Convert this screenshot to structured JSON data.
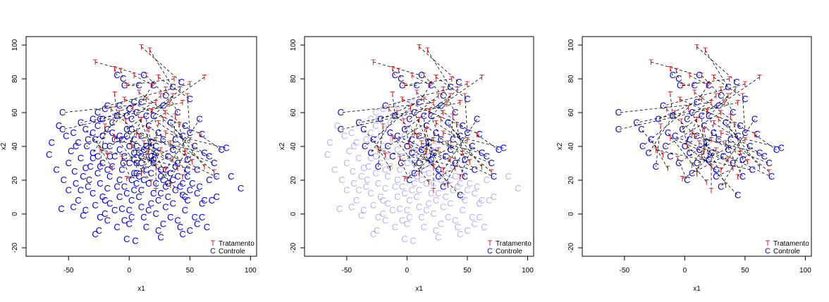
{
  "chart_data": [
    {
      "type": "scatter",
      "panel": "all-controls",
      "title": "",
      "xlabel": "x1",
      "ylabel": "x2",
      "xlim": [
        -85,
        105
      ],
      "ylim": [
        -25,
        105
      ],
      "xticks": [
        -50,
        0,
        50,
        100
      ],
      "yticks": [
        -20,
        0,
        20,
        40,
        60,
        80,
        100
      ],
      "legend": {
        "position": "bottom-right",
        "entries": [
          "Tratamento",
          "Controle"
        ]
      },
      "marker_treatment": "T",
      "marker_control": "C",
      "color_treatment": "#e41a1c",
      "color_control": "#0000ee",
      "unmatched_control_style": "full"
    },
    {
      "type": "scatter",
      "panel": "matched-highlighted",
      "title": "",
      "xlabel": "x1",
      "ylabel": "x2",
      "xlim": [
        -85,
        105
      ],
      "ylim": [
        -25,
        105
      ],
      "xticks": [
        -50,
        0,
        50,
        100
      ],
      "yticks": [
        -20,
        0,
        20,
        40,
        60,
        80,
        100
      ],
      "legend": {
        "position": "bottom-right",
        "entries": [
          "Tratamento",
          "Controle"
        ]
      },
      "marker_treatment": "T",
      "marker_control": "C",
      "color_treatment": "#e41a1c",
      "color_control": "#0000ee",
      "unmatched_control_style": "faded"
    },
    {
      "type": "scatter",
      "panel": "matched-only",
      "title": "",
      "xlabel": "x1",
      "ylabel": "x2",
      "xlim": [
        -85,
        105
      ],
      "ylim": [
        -25,
        105
      ],
      "xticks": [
        -50,
        0,
        50,
        100
      ],
      "yticks": [
        -20,
        0,
        20,
        40,
        60,
        80,
        100
      ],
      "legend": {
        "position": "bottom-right",
        "entries": [
          "Tratamento",
          "Controle"
        ]
      },
      "marker_treatment": "T",
      "marker_control": "C",
      "color_treatment": "#e41a1c",
      "color_control": "#0000ee",
      "unmatched_control_style": "hidden"
    }
  ],
  "shared_data": {
    "treated": [
      [
        10,
        99
      ],
      [
        17,
        97
      ],
      [
        -28,
        90
      ],
      [
        -12,
        86
      ],
      [
        -7,
        85
      ],
      [
        4,
        82
      ],
      [
        14,
        82
      ],
      [
        24,
        81
      ],
      [
        37,
        80
      ],
      [
        62,
        81
      ],
      [
        50,
        77
      ],
      [
        -2,
        76
      ],
      [
        19,
        76
      ],
      [
        30,
        74
      ],
      [
        42,
        74
      ],
      [
        8,
        72
      ],
      [
        -12,
        71
      ],
      [
        26,
        70
      ],
      [
        36,
        70
      ],
      [
        48,
        70
      ],
      [
        -4,
        68
      ],
      [
        14,
        68
      ],
      [
        22,
        66
      ],
      [
        33,
        65
      ],
      [
        44,
        66
      ],
      [
        3,
        63
      ],
      [
        -15,
        62
      ],
      [
        -8,
        60
      ],
      [
        18,
        61
      ],
      [
        30,
        60
      ],
      [
        38,
        58
      ],
      [
        10,
        56
      ],
      [
        -3,
        55
      ],
      [
        24,
        54
      ],
      [
        41,
        53
      ],
      [
        -20,
        52
      ],
      [
        16,
        50
      ],
      [
        6,
        48
      ],
      [
        30,
        48
      ],
      [
        58,
        47
      ],
      [
        -12,
        45
      ],
      [
        22,
        44
      ],
      [
        12,
        42
      ],
      [
        34,
        42
      ],
      [
        2,
        40
      ],
      [
        -24,
        38
      ],
      [
        26,
        38
      ],
      [
        46,
        36
      ],
      [
        14,
        34
      ],
      [
        -6,
        33
      ],
      [
        36,
        32
      ],
      [
        52,
        31
      ],
      [
        6,
        29
      ],
      [
        22,
        28
      ],
      [
        62,
        28
      ],
      [
        -14,
        27
      ],
      [
        30,
        26
      ],
      [
        70,
        25
      ],
      [
        10,
        24
      ],
      [
        44,
        22
      ],
      [
        -2,
        21
      ],
      [
        18,
        19
      ],
      [
        34,
        17
      ],
      [
        22,
        14
      ],
      [
        50,
        44
      ],
      [
        8,
        46
      ],
      [
        28,
        56
      ],
      [
        -18,
        35
      ],
      [
        40,
        27
      ],
      [
        16,
        37
      ]
    ],
    "matched_controls": [
      [
        43,
        78
      ],
      [
        36,
        75
      ],
      [
        12,
        82
      ],
      [
        -10,
        82
      ],
      [
        -5,
        80
      ],
      [
        20,
        76
      ],
      [
        30,
        70
      ],
      [
        50,
        68
      ],
      [
        -4,
        76
      ],
      [
        28,
        64
      ],
      [
        -18,
        64
      ],
      [
        8,
        76
      ],
      [
        10,
        66
      ],
      [
        40,
        60
      ],
      [
        20,
        58
      ],
      [
        46,
        52
      ],
      [
        -10,
        58
      ],
      [
        2,
        56
      ],
      [
        -2,
        50
      ],
      [
        50,
        48
      ],
      [
        60,
        47
      ],
      [
        -22,
        56
      ],
      [
        -55,
        60
      ],
      [
        -40,
        54
      ],
      [
        -55,
        50
      ],
      [
        -35,
        40
      ],
      [
        10,
        46
      ],
      [
        -30,
        36
      ],
      [
        28,
        44
      ],
      [
        -16,
        40
      ],
      [
        36,
        38
      ],
      [
        0,
        40
      ],
      [
        4,
        36
      ],
      [
        66,
        34
      ],
      [
        48,
        32
      ],
      [
        -24,
        28
      ],
      [
        20,
        32
      ],
      [
        70,
        30
      ],
      [
        80,
        39
      ],
      [
        76,
        38
      ],
      [
        40,
        30
      ],
      [
        -5,
        30
      ],
      [
        72,
        22
      ],
      [
        48,
        22
      ],
      [
        26,
        26
      ],
      [
        56,
        26
      ],
      [
        6,
        24
      ],
      [
        30,
        16
      ],
      [
        44,
        11
      ],
      [
        2,
        20
      ],
      [
        -8,
        46
      ],
      [
        16,
        52
      ],
      [
        24,
        48
      ],
      [
        12,
        38
      ],
      [
        34,
        54
      ],
      [
        -28,
        44
      ],
      [
        58,
        56
      ],
      [
        38,
        44
      ],
      [
        18,
        42
      ],
      [
        54,
        40
      ],
      [
        32,
        34
      ],
      [
        -14,
        48
      ],
      [
        6,
        60
      ],
      [
        22,
        36
      ],
      [
        10,
        30
      ],
      [
        62,
        36
      ],
      [
        44,
        46
      ],
      [
        -36,
        50
      ],
      [
        26,
        22
      ],
      [
        14,
        58
      ],
      [
        4,
        44
      ],
      [
        -12,
        34
      ]
    ],
    "unmatched_controls": [
      [
        -66,
        35
      ],
      [
        -56,
        3
      ],
      [
        -38,
        -1
      ],
      [
        -28,
        -12
      ],
      [
        -25,
        -10
      ],
      [
        -40,
        14
      ],
      [
        -44,
        18
      ],
      [
        -45,
        25
      ],
      [
        -50,
        30
      ],
      [
        -48,
        37
      ],
      [
        -42,
        42
      ],
      [
        -36,
        27
      ],
      [
        -33,
        20
      ],
      [
        -30,
        12
      ],
      [
        -28,
        5
      ],
      [
        -24,
        -2
      ],
      [
        -20,
        8
      ],
      [
        -18,
        15
      ],
      [
        -16,
        22
      ],
      [
        -14,
        28
      ],
      [
        -10,
        16
      ],
      [
        -8,
        10
      ],
      [
        -6,
        3
      ],
      [
        -4,
        -4
      ],
      [
        0,
        -6
      ],
      [
        -2,
        -15
      ],
      [
        5,
        -16
      ],
      [
        2,
        8
      ],
      [
        4,
        14
      ],
      [
        6,
        18
      ],
      [
        8,
        10
      ],
      [
        10,
        4
      ],
      [
        12,
        -2
      ],
      [
        14,
        -8
      ],
      [
        16,
        2
      ],
      [
        18,
        6
      ],
      [
        20,
        12
      ],
      [
        22,
        0
      ],
      [
        24,
        -10
      ],
      [
        26,
        -14
      ],
      [
        28,
        -6
      ],
      [
        30,
        4
      ],
      [
        32,
        10
      ],
      [
        34,
        -2
      ],
      [
        36,
        6
      ],
      [
        38,
        14
      ],
      [
        40,
        -4
      ],
      [
        42,
        -8
      ],
      [
        44,
        -12
      ],
      [
        46,
        2
      ],
      [
        48,
        8
      ],
      [
        50,
        14
      ],
      [
        52,
        18
      ],
      [
        54,
        -2
      ],
      [
        56,
        12
      ],
      [
        58,
        16
      ],
      [
        60,
        6
      ],
      [
        62,
        8
      ],
      [
        -58,
        52
      ],
      [
        -52,
        46
      ],
      [
        -46,
        48
      ],
      [
        -44,
        40
      ],
      [
        -40,
        33
      ],
      [
        -38,
        22
      ],
      [
        -34,
        16
      ],
      [
        -32,
        28
      ],
      [
        -30,
        33
      ],
      [
        -26,
        24
      ],
      [
        -24,
        18
      ],
      [
        -22,
        10
      ],
      [
        -20,
        0
      ],
      [
        -18,
        -4
      ],
      [
        -16,
        6
      ],
      [
        -12,
        2
      ],
      [
        -10,
        -8
      ],
      [
        -8,
        20
      ],
      [
        -6,
        26
      ],
      [
        -4,
        16
      ],
      [
        -2,
        12
      ],
      [
        0,
        2
      ],
      [
        2,
        -2
      ],
      [
        4,
        24
      ],
      [
        6,
        30
      ],
      [
        8,
        22
      ],
      [
        10,
        14
      ],
      [
        12,
        20
      ],
      [
        14,
        26
      ],
      [
        16,
        18
      ],
      [
        18,
        24
      ],
      [
        20,
        30
      ],
      [
        22,
        18
      ],
      [
        24,
        8
      ],
      [
        26,
        12
      ],
      [
        28,
        20
      ],
      [
        30,
        26
      ],
      [
        32,
        18
      ],
      [
        34,
        24
      ],
      [
        36,
        20
      ],
      [
        38,
        28
      ],
      [
        40,
        22
      ],
      [
        42,
        16
      ],
      [
        44,
        18
      ],
      [
        46,
        10
      ],
      [
        48,
        26
      ],
      [
        -50,
        14
      ],
      [
        -54,
        20
      ],
      [
        -20,
        40
      ],
      [
        -16,
        34
      ],
      [
        -12,
        44
      ],
      [
        -8,
        38
      ],
      [
        -4,
        34
      ],
      [
        0,
        30
      ],
      [
        4,
        32
      ],
      [
        8,
        36
      ],
      [
        -26,
        34
      ],
      [
        -22,
        30
      ],
      [
        -18,
        26
      ],
      [
        -34,
        44
      ],
      [
        -30,
        48
      ],
      [
        -26,
        52
      ],
      [
        -22,
        46
      ],
      [
        -42,
        8
      ],
      [
        -46,
        4
      ],
      [
        -36,
        2
      ],
      [
        -60,
        26
      ],
      [
        -64,
        42
      ],
      [
        -6,
        44
      ],
      [
        -2,
        46
      ],
      [
        2,
        50
      ],
      [
        6,
        40
      ],
      [
        10,
        34
      ],
      [
        14,
        40
      ],
      [
        18,
        34
      ],
      [
        22,
        40
      ],
      [
        92,
        15
      ],
      [
        84,
        22
      ],
      [
        72,
        10
      ],
      [
        66,
        20
      ],
      [
        68,
        8
      ],
      [
        60,
        -2
      ],
      [
        64,
        -8
      ],
      [
        56,
        -6
      ],
      [
        50,
        -10
      ],
      [
        -26,
        60
      ],
      [
        -30,
        56
      ],
      [
        -20,
        62
      ],
      [
        0,
        62
      ],
      [
        4,
        66
      ],
      [
        -8,
        64
      ],
      [
        -14,
        54
      ],
      [
        -18,
        50
      ],
      [
        -24,
        56
      ],
      [
        -2,
        58
      ]
    ],
    "legend_labels": {
      "treatment": "Tratamento",
      "control": "Controle"
    }
  }
}
